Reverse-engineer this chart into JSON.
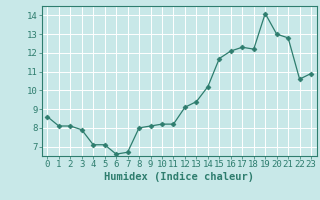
{
  "x": [
    0,
    1,
    2,
    3,
    4,
    5,
    6,
    7,
    8,
    9,
    10,
    11,
    12,
    13,
    14,
    15,
    16,
    17,
    18,
    19,
    20,
    21,
    22,
    23
  ],
  "y": [
    8.6,
    8.1,
    8.1,
    7.9,
    7.1,
    7.1,
    6.6,
    6.7,
    8.0,
    8.1,
    8.2,
    8.2,
    9.1,
    9.4,
    10.2,
    11.7,
    12.1,
    12.3,
    12.2,
    14.1,
    13.0,
    12.8,
    10.6,
    10.9
  ],
  "line_color": "#2e7d6e",
  "marker": "D",
  "marker_size": 2.5,
  "bg_color": "#c8e8e8",
  "grid_color": "#ffffff",
  "xlabel": "Humidex (Indice chaleur)",
  "ylim": [
    6.5,
    14.5
  ],
  "xlim": [
    -0.5,
    23.5
  ],
  "yticks": [
    7,
    8,
    9,
    10,
    11,
    12,
    13,
    14
  ],
  "xticks": [
    0,
    1,
    2,
    3,
    4,
    5,
    6,
    7,
    8,
    9,
    10,
    11,
    12,
    13,
    14,
    15,
    16,
    17,
    18,
    19,
    20,
    21,
    22,
    23
  ],
  "tick_color": "#2e7d6e",
  "label_fontsize": 6.5,
  "xlabel_fontsize": 7.5
}
